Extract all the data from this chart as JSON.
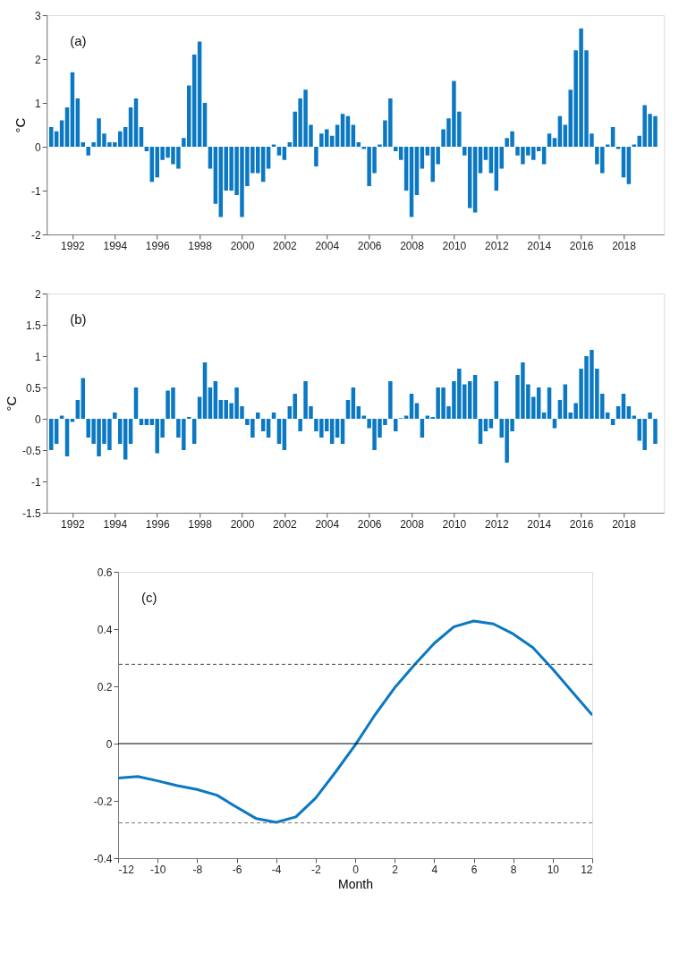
{
  "chart_data": [
    {
      "type": "bar",
      "ylabel": "°C",
      "annotations": [
        "(a)"
      ],
      "xlim": [
        1991,
        2019.7
      ],
      "xticks": [
        1992,
        1994,
        1996,
        1998,
        2000,
        2002,
        2004,
        2006,
        2008,
        2010,
        2012,
        2014,
        2016,
        2018
      ],
      "ylim": [
        -2,
        3
      ],
      "yticks": [
        -2,
        -1,
        0,
        1,
        2,
        3
      ],
      "grid": false,
      "x": [
        1991.0,
        1991.25,
        1991.5,
        1991.75,
        1992.0,
        1992.25,
        1992.5,
        1992.75,
        1993.0,
        1993.25,
        1993.5,
        1993.75,
        1994.0,
        1994.25,
        1994.5,
        1994.75,
        1995.0,
        1995.25,
        1995.5,
        1995.75,
        1996.0,
        1996.25,
        1996.5,
        1996.75,
        1997.0,
        1997.25,
        1997.5,
        1997.75,
        1998.0,
        1998.25,
        1998.5,
        1998.75,
        1999.0,
        1999.25,
        1999.5,
        1999.75,
        2000.0,
        2000.25,
        2000.5,
        2000.75,
        2001.0,
        2001.25,
        2001.5,
        2001.75,
        2002.0,
        2002.25,
        2002.5,
        2002.75,
        2003.0,
        2003.25,
        2003.5,
        2003.75,
        2004.0,
        2004.25,
        2004.5,
        2004.75,
        2005.0,
        2005.25,
        2005.5,
        2005.75,
        2006.0,
        2006.25,
        2006.5,
        2006.75,
        2007.0,
        2007.25,
        2007.5,
        2007.75,
        2008.0,
        2008.25,
        2008.5,
        2008.75,
        2009.0,
        2009.25,
        2009.5,
        2009.75,
        2010.0,
        2010.25,
        2010.5,
        2010.75,
        2011.0,
        2011.25,
        2011.5,
        2011.75,
        2012.0,
        2012.25,
        2012.5,
        2012.75,
        2013.0,
        2013.25,
        2013.5,
        2013.75,
        2014.0,
        2014.25,
        2014.5,
        2014.75,
        2015.0,
        2015.25,
        2015.5,
        2015.75,
        2016.0,
        2016.25,
        2016.5,
        2016.75,
        2017.0,
        2017.25,
        2017.5,
        2017.75,
        2018.0,
        2018.25,
        2018.5,
        2018.75,
        2019.0,
        2019.25,
        2019.5
      ],
      "series": [
        {
          "color": "#0a78c2",
          "values": [
            0.45,
            0.35,
            0.6,
            0.9,
            1.7,
            1.1,
            0.1,
            -0.2,
            0.1,
            0.65,
            0.3,
            0.1,
            0.1,
            0.35,
            0.45,
            0.9,
            1.1,
            0.45,
            -0.1,
            -0.8,
            -0.7,
            -0.3,
            -0.25,
            -0.4,
            -0.5,
            0.2,
            1.4,
            2.1,
            2.4,
            1.0,
            -0.5,
            -1.3,
            -1.6,
            -1.0,
            -1.0,
            -1.1,
            -1.6,
            -0.9,
            -0.6,
            -0.6,
            -0.8,
            -0.5,
            0.05,
            -0.2,
            -0.3,
            0.1,
            0.8,
            1.1,
            1.3,
            0.5,
            -0.45,
            0.3,
            0.4,
            0.25,
            0.5,
            0.75,
            0.7,
            0.5,
            0.1,
            -0.05,
            -0.9,
            -0.6,
            0.05,
            0.6,
            1.1,
            -0.1,
            -0.3,
            -1.0,
            -1.6,
            -1.1,
            -0.5,
            -0.2,
            -0.8,
            -0.4,
            0.4,
            0.65,
            1.5,
            0.8,
            -0.2,
            -1.4,
            -1.5,
            -0.6,
            -0.3,
            -0.6,
            -1.0,
            -0.5,
            0.2,
            0.35,
            -0.2,
            -0.4,
            -0.2,
            -0.3,
            -0.1,
            -0.4,
            0.3,
            0.2,
            0.7,
            0.5,
            1.3,
            2.2,
            2.7,
            2.2,
            0.3,
            -0.4,
            -0.6,
            0.05,
            0.45,
            -0.05,
            -0.7,
            -0.85,
            0.05,
            0.25,
            0.95,
            0.75,
            0.7
          ]
        }
      ]
    },
    {
      "type": "bar",
      "ylabel": "°C",
      "annotations": [
        "(b)"
      ],
      "xlim": [
        1991,
        2019.7
      ],
      "xticks": [
        1992,
        1994,
        1996,
        1998,
        2000,
        2002,
        2004,
        2006,
        2008,
        2010,
        2012,
        2014,
        2016,
        2018
      ],
      "ylim": [
        -1.5,
        2
      ],
      "yticks": [
        -1.5,
        -1,
        -0.5,
        0,
        0.5,
        1,
        1.5,
        2
      ],
      "grid": false,
      "x": [
        1991.0,
        1991.25,
        1991.5,
        1991.75,
        1992.0,
        1992.25,
        1992.5,
        1992.75,
        1993.0,
        1993.25,
        1993.5,
        1993.75,
        1994.0,
        1994.25,
        1994.5,
        1994.75,
        1995.0,
        1995.25,
        1995.5,
        1995.75,
        1996.0,
        1996.25,
        1996.5,
        1996.75,
        1997.0,
        1997.25,
        1997.5,
        1997.75,
        1998.0,
        1998.25,
        1998.5,
        1998.75,
        1999.0,
        1999.25,
        1999.5,
        1999.75,
        2000.0,
        2000.25,
        2000.5,
        2000.75,
        2001.0,
        2001.25,
        2001.5,
        2001.75,
        2002.0,
        2002.25,
        2002.5,
        2002.75,
        2003.0,
        2003.25,
        2003.5,
        2003.75,
        2004.0,
        2004.25,
        2004.5,
        2004.75,
        2005.0,
        2005.25,
        2005.5,
        2005.75,
        2006.0,
        2006.25,
        2006.5,
        2006.75,
        2007.0,
        2007.25,
        2007.5,
        2007.75,
        2008.0,
        2008.25,
        2008.5,
        2008.75,
        2009.0,
        2009.25,
        2009.5,
        2009.75,
        2010.0,
        2010.25,
        2010.5,
        2010.75,
        2011.0,
        2011.25,
        2011.5,
        2011.75,
        2012.0,
        2012.25,
        2012.5,
        2012.75,
        2013.0,
        2013.25,
        2013.5,
        2013.75,
        2014.0,
        2014.25,
        2014.5,
        2014.75,
        2015.0,
        2015.25,
        2015.5,
        2015.75,
        2016.0,
        2016.25,
        2016.5,
        2016.75,
        2017.0,
        2017.25,
        2017.5,
        2017.75,
        2018.0,
        2018.25,
        2018.5,
        2018.75,
        2019.0,
        2019.25,
        2019.5
      ],
      "series": [
        {
          "color": "#0a78c2",
          "values": [
            -0.5,
            -0.4,
            0.05,
            -0.6,
            -0.05,
            0.3,
            0.65,
            -0.3,
            -0.4,
            -0.6,
            -0.4,
            -0.5,
            0.1,
            -0.4,
            -0.65,
            -0.4,
            0.5,
            -0.1,
            -0.1,
            -0.1,
            -0.55,
            -0.3,
            0.45,
            0.5,
            -0.3,
            -0.5,
            0.03,
            -0.4,
            0.35,
            0.9,
            0.5,
            0.6,
            0.3,
            0.3,
            0.25,
            0.5,
            0.2,
            -0.1,
            -0.3,
            0.1,
            -0.2,
            -0.3,
            0.1,
            -0.4,
            -0.5,
            0.2,
            0.4,
            -0.2,
            0.6,
            0.2,
            -0.2,
            -0.3,
            -0.2,
            -0.4,
            -0.3,
            -0.4,
            0.3,
            0.5,
            0.2,
            0.05,
            -0.15,
            -0.5,
            -0.3,
            -0.1,
            0.6,
            -0.2,
            0.01,
            0.05,
            0.4,
            0.25,
            -0.3,
            0.05,
            0.03,
            0.5,
            0.5,
            0.2,
            0.6,
            0.8,
            0.55,
            0.6,
            0.7,
            -0.4,
            -0.2,
            -0.15,
            0.6,
            -0.3,
            -0.7,
            -0.2,
            0.7,
            0.9,
            0.55,
            0.35,
            0.5,
            0.1,
            0.5,
            -0.15,
            0.3,
            0.55,
            0.1,
            0.25,
            0.8,
            1.0,
            1.1,
            0.8,
            0.4,
            0.1,
            -0.1,
            0.2,
            0.4,
            0.2,
            0.05,
            -0.35,
            -0.5,
            0.1,
            -0.4
          ]
        }
      ]
    },
    {
      "type": "line",
      "xlabel": "Month",
      "annotations": [
        "(c)"
      ],
      "xlim": [
        -12,
        12
      ],
      "xticks": [
        -12,
        -10,
        -8,
        -6,
        -4,
        -2,
        0,
        2,
        4,
        6,
        8,
        10,
        12
      ],
      "ylim": [
        -0.4,
        0.6
      ],
      "yticks": [
        -0.4,
        -0.2,
        0,
        0.2,
        0.4,
        0.6
      ],
      "grid": false,
      "marker": "none",
      "line_style": "solid",
      "x": [
        -12,
        -11,
        -10,
        -9,
        -8,
        -7,
        -6,
        -5,
        -4,
        -3,
        -2,
        -1,
        0,
        1,
        2,
        3,
        4,
        5,
        6,
        7,
        8,
        9,
        10,
        11,
        12
      ],
      "series": [
        {
          "color": "#0a72c0",
          "values": [
            -0.12,
            -0.115,
            -0.13,
            -0.147,
            -0.16,
            -0.18,
            -0.222,
            -0.262,
            -0.275,
            -0.256,
            -0.19,
            -0.1,
            -0.005,
            0.1,
            0.195,
            0.275,
            0.35,
            0.408,
            0.428,
            0.418,
            0.383,
            0.335,
            0.26,
            0.18,
            0.1
          ]
        }
      ],
      "ref_lines": [
        {
          "axis": "y",
          "value": 0,
          "color": "#000000",
          "line_style": "solid"
        },
        {
          "axis": "y",
          "value": 0.277,
          "color": "#444444",
          "line_style": "dashed"
        },
        {
          "axis": "y",
          "value": -0.277,
          "color": "#777777",
          "line_style": "dashed"
        }
      ]
    }
  ]
}
